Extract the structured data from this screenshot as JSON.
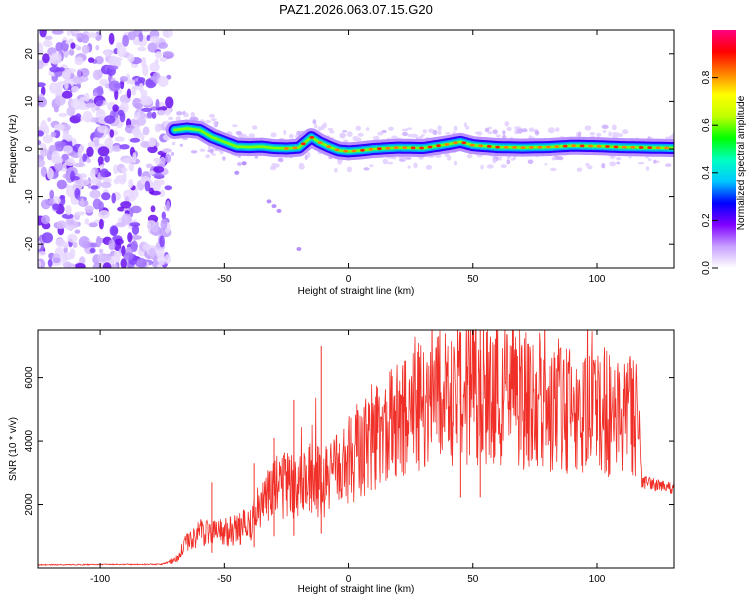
{
  "title": "PAZ1.2026.063.07.15.G20",
  "chart_data": [
    {
      "type": "heatmap",
      "name": "spectrogram",
      "xlabel": "Height of straight line (km)",
      "ylabel": "Frequency (Hz)",
      "xlim": [
        -125,
        131
      ],
      "ylim": [
        -25,
        25
      ],
      "xticks": [
        -100,
        -50,
        0,
        50,
        100
      ],
      "yticks": [
        -20,
        -10,
        0,
        10,
        20
      ],
      "noise_region_x": [
        -125,
        -72
      ],
      "ridge": [
        {
          "x": -70,
          "y": 4.0
        },
        {
          "x": -65,
          "y": 4.3
        },
        {
          "x": -60,
          "y": 4.0
        },
        {
          "x": -55,
          "y": 2.5
        },
        {
          "x": -50,
          "y": 1.5
        },
        {
          "x": -45,
          "y": 0.5
        },
        {
          "x": -40,
          "y": 0.4
        },
        {
          "x": -35,
          "y": 0.5
        },
        {
          "x": -30,
          "y": 0.2
        },
        {
          "x": -25,
          "y": 0.1
        },
        {
          "x": -20,
          "y": 0.3
        },
        {
          "x": -15,
          "y": 2.5
        },
        {
          "x": -12,
          "y": 1.5
        },
        {
          "x": -8,
          "y": 0.5
        },
        {
          "x": -4,
          "y": -0.3
        },
        {
          "x": 0,
          "y": -0.5
        },
        {
          "x": 5,
          "y": -0.3
        },
        {
          "x": 10,
          "y": 0.0
        },
        {
          "x": 20,
          "y": 0.3
        },
        {
          "x": 30,
          "y": 0.2
        },
        {
          "x": 40,
          "y": 1.0
        },
        {
          "x": 45,
          "y": 1.5
        },
        {
          "x": 50,
          "y": 0.8
        },
        {
          "x": 60,
          "y": 0.4
        },
        {
          "x": 70,
          "y": 0.3
        },
        {
          "x": 80,
          "y": 0.4
        },
        {
          "x": 90,
          "y": 0.7
        },
        {
          "x": 100,
          "y": 0.6
        },
        {
          "x": 110,
          "y": 0.4
        },
        {
          "x": 120,
          "y": 0.3
        },
        {
          "x": 131,
          "y": 0.2
        }
      ],
      "colorbar": {
        "label": "Normalized spectral amplitude",
        "range": [
          0,
          1
        ],
        "ticks": [
          "0.0",
          "0.2",
          "0.4",
          "0.6",
          "0.8"
        ],
        "colors": [
          "#ffffff",
          "#c8a0ff",
          "#8000ff",
          "#0000ff",
          "#00c8ff",
          "#00ffc0",
          "#00ff00",
          "#c0ff00",
          "#ffff00",
          "#ff8000",
          "#ff0000",
          "#ff0080"
        ]
      }
    },
    {
      "type": "line",
      "name": "snr",
      "xlabel": "Height of straight line (km)",
      "ylabel": "SNR (10 * v/v)",
      "xlim": [
        -125,
        131
      ],
      "ylim": [
        0,
        7500
      ],
      "xticks": [
        -100,
        -50,
        0,
        50,
        100
      ],
      "yticks": [
        2000,
        4000,
        6000
      ],
      "color": "#f03028",
      "envelope": [
        {
          "x": -125,
          "y": 100
        },
        {
          "x": -75,
          "y": 120
        },
        {
          "x": -70,
          "y": 250
        },
        {
          "x": -65,
          "y": 800
        },
        {
          "x": -60,
          "y": 1100
        },
        {
          "x": -55,
          "y": 1200
        },
        {
          "x": -50,
          "y": 1100
        },
        {
          "x": -45,
          "y": 1200
        },
        {
          "x": -40,
          "y": 1400
        },
        {
          "x": -35,
          "y": 2000
        },
        {
          "x": -30,
          "y": 2500
        },
        {
          "x": -25,
          "y": 2600
        },
        {
          "x": -20,
          "y": 2500
        },
        {
          "x": -15,
          "y": 2800
        },
        {
          "x": -10,
          "y": 2700
        },
        {
          "x": -5,
          "y": 3000
        },
        {
          "x": 0,
          "y": 3400
        },
        {
          "x": 5,
          "y": 3800
        },
        {
          "x": 10,
          "y": 4200
        },
        {
          "x": 20,
          "y": 4600
        },
        {
          "x": 30,
          "y": 5100
        },
        {
          "x": 40,
          "y": 5500
        },
        {
          "x": 50,
          "y": 5600
        },
        {
          "x": 60,
          "y": 5500
        },
        {
          "x": 70,
          "y": 5300
        },
        {
          "x": 80,
          "y": 5200
        },
        {
          "x": 90,
          "y": 5000
        },
        {
          "x": 100,
          "y": 4900
        },
        {
          "x": 110,
          "y": 4900
        },
        {
          "x": 117,
          "y": 4900
        },
        {
          "x": 118,
          "y": 2700
        },
        {
          "x": 131,
          "y": 2500
        }
      ],
      "spikes": [
        {
          "x": -55,
          "y": 2700
        },
        {
          "x": -38,
          "y": 3300
        },
        {
          "x": -30,
          "y": 4100
        },
        {
          "x": -22,
          "y": 5300
        },
        {
          "x": -11,
          "y": 7000
        },
        {
          "x": 45,
          "y": 7400
        },
        {
          "x": 53,
          "y": 7500
        }
      ]
    }
  ]
}
